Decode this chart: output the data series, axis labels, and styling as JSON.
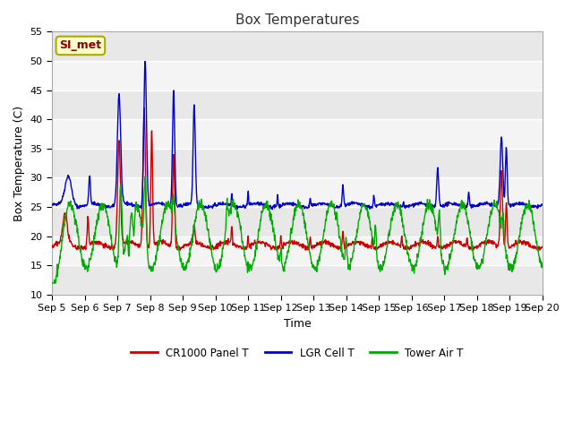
{
  "title": "Box Temperatures",
  "xlabel": "Time",
  "ylabel": "Box Temperature (C)",
  "ylim": [
    10,
    55
  ],
  "yticks": [
    10,
    15,
    20,
    25,
    30,
    35,
    40,
    45,
    50,
    55
  ],
  "annotation": "SI_met",
  "bg_color": "#ffffff",
  "band_colors": [
    "#f0f0f0",
    "#e0e0e0"
  ],
  "grid_color": "#d8d8d8",
  "line_cr1000": "#cc0000",
  "line_lgr": "#0000cc",
  "line_tower": "#00aa00",
  "legend_labels": [
    "CR1000 Panel T",
    "LGR Cell T",
    "Tower Air T"
  ],
  "x_tick_labels": [
    "Sep 5",
    "Sep 6",
    "Sep 7",
    "Sep 8",
    "Sep 9",
    "Sep 10",
    "Sep 11",
    "Sep 12",
    "Sep 13",
    "Sep 14",
    "Sep 15",
    "Sep 16",
    "Sep 17",
    "Sep 18",
    "Sep 19",
    "Sep 20"
  ],
  "title_fontsize": 11,
  "axis_fontsize": 9,
  "tick_fontsize": 8
}
